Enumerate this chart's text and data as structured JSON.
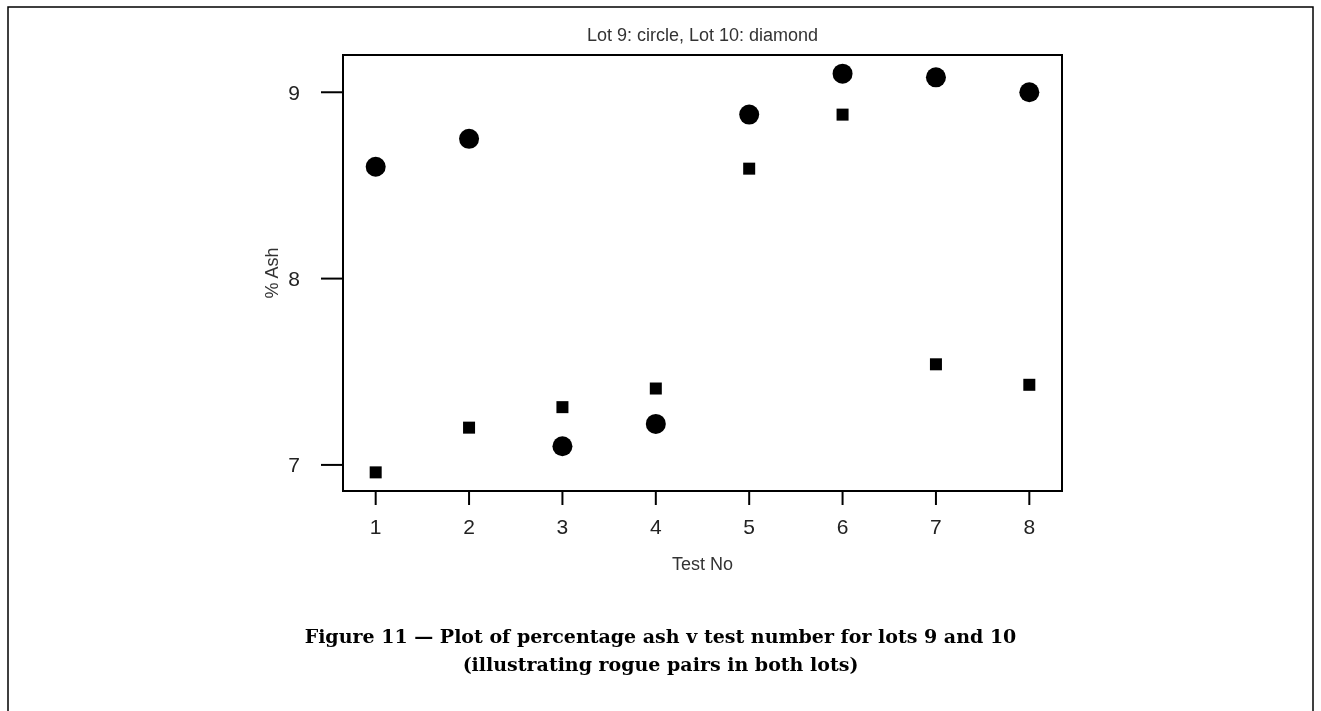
{
  "chart_data": {
    "type": "scatter",
    "title": "Lot 9: circle, Lot 10: diamond",
    "xlabel": "Test No",
    "ylabel": "% Ash",
    "x": [
      1,
      2,
      3,
      4,
      5,
      6,
      7,
      8
    ],
    "series": [
      {
        "color": "#000000",
        "marker": "circle",
        "values": [
          8.6,
          8.75,
          7.1,
          7.22,
          8.88,
          9.1,
          9.08,
          9.0
        ]
      },
      {
        "color": "#000000",
        "marker": "square",
        "values": [
          6.96,
          7.2,
          7.31,
          7.41,
          8.59,
          8.88,
          7.54,
          7.43
        ]
      }
    ],
    "xlim": [
      0.65,
      8.35
    ],
    "ylim": [
      6.86,
      9.2
    ],
    "xticks": [
      1,
      2,
      3,
      4,
      5,
      6,
      7,
      8
    ],
    "yticks": [
      7,
      8,
      9
    ],
    "annotations": [
      "Figure 11 — Plot of percentage ash v test number for lots 9 and 10\n(illustrating rogue pairs in both lots)"
    ]
  }
}
